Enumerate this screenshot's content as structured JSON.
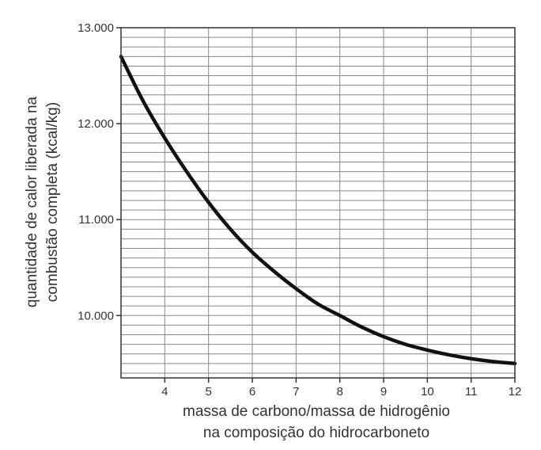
{
  "chart_data": {
    "type": "line",
    "xlabel_lines": [
      "massa de carbono/massa de hidrogênio",
      "na composição do hidrocarboneto"
    ],
    "ylabel_lines": [
      "quantidade de calor liberada na",
      "combustão completa (kcal/kg)"
    ],
    "xlim": [
      3,
      12
    ],
    "ylim": [
      9350,
      13000
    ],
    "x_ticks": [
      4,
      5,
      6,
      7,
      8,
      9,
      10,
      11,
      12
    ],
    "x_tick_labels": [
      "4",
      "5",
      "6",
      "7",
      "8",
      "9",
      "10",
      "11",
      "12"
    ],
    "y_ticks": [
      10000,
      11000,
      12000,
      13000
    ],
    "y_tick_labels": [
      "10.000",
      "11.000",
      "12.000",
      "13.000"
    ],
    "grid": true,
    "grid_minor_y_step": 100,
    "series": [
      {
        "x": [
          3,
          3.5,
          4,
          4.5,
          5,
          5.5,
          6,
          6.5,
          7,
          7.5,
          8,
          8.5,
          9,
          9.5,
          10,
          10.5,
          11,
          11.5,
          12
        ],
        "y": [
          12700,
          12240,
          11850,
          11500,
          11180,
          10900,
          10660,
          10460,
          10280,
          10120,
          10000,
          9880,
          9780,
          9700,
          9640,
          9590,
          9550,
          9520,
          9500
        ]
      }
    ]
  }
}
